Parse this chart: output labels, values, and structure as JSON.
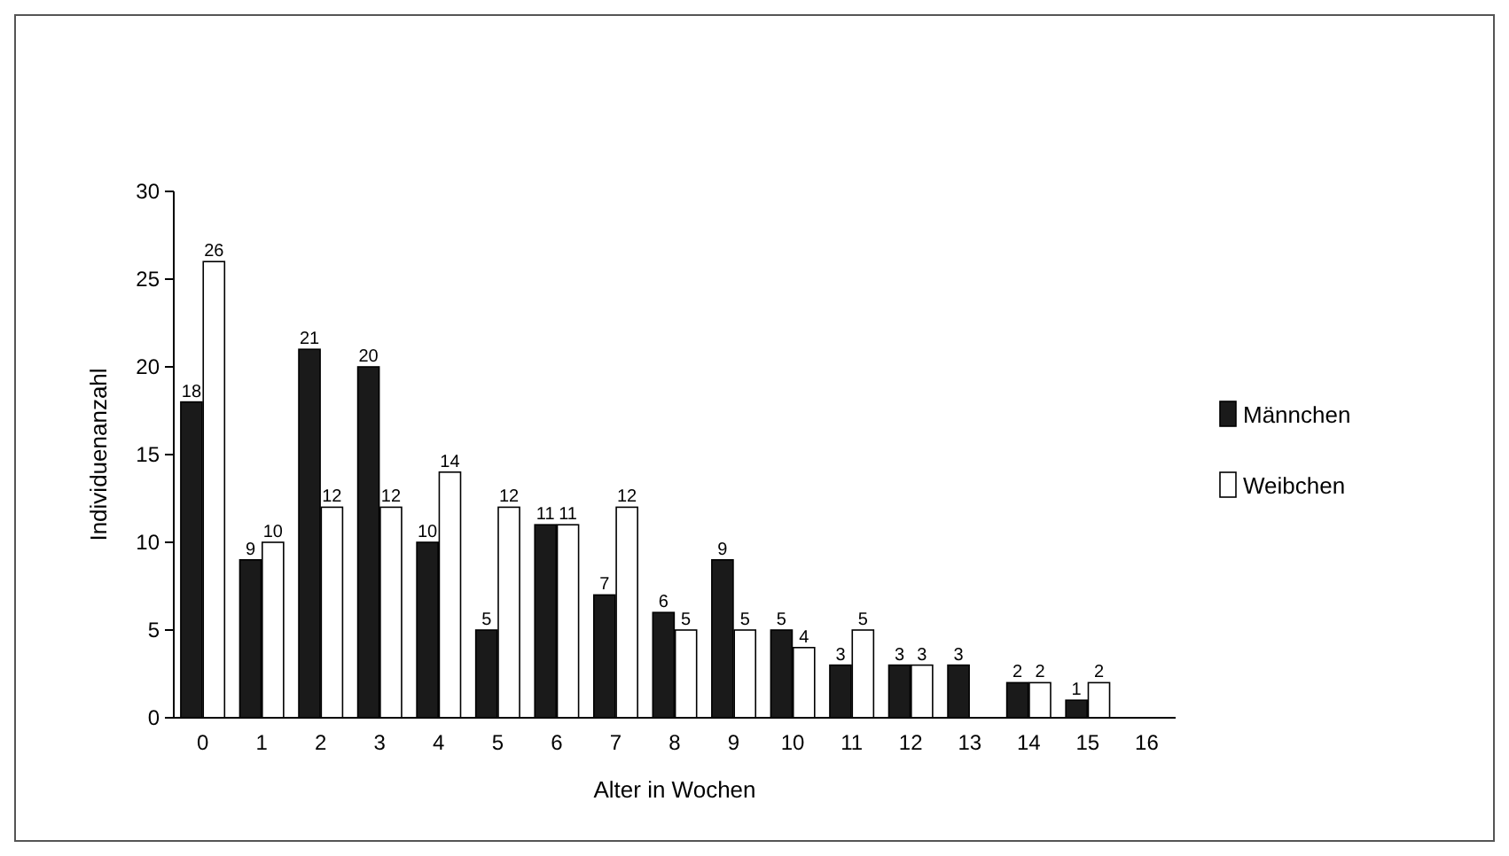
{
  "chart_data": {
    "type": "bar",
    "xlabel": "Alter in Wochen",
    "ylabel": "Individuenanzahl",
    "categories": [
      "0",
      "1",
      "2",
      "3",
      "4",
      "5",
      "6",
      "7",
      "8",
      "9",
      "10",
      "11",
      "12",
      "13",
      "14",
      "15",
      "16"
    ],
    "series": [
      {
        "name": "Männchen",
        "color": "#1a1a1a",
        "values": [
          18,
          9,
          21,
          20,
          10,
          5,
          11,
          7,
          6,
          9,
          5,
          3,
          3,
          3,
          2,
          1,
          null
        ]
      },
      {
        "name": "Weibchen",
        "color": "#ffffff",
        "values": [
          26,
          10,
          12,
          12,
          14,
          12,
          11,
          12,
          5,
          5,
          4,
          5,
          3,
          null,
          2,
          2,
          null
        ]
      }
    ],
    "ylim": [
      0,
      30
    ],
    "yticks": [
      0,
      5,
      10,
      15,
      20,
      25,
      30
    ],
    "data_labels": true,
    "legend": "right",
    "grid": false
  }
}
